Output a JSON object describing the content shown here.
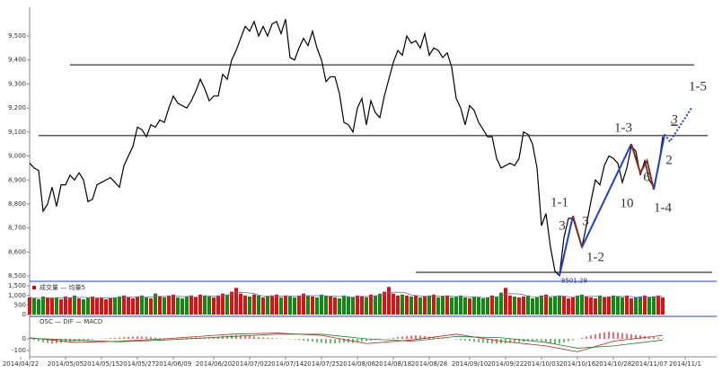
{
  "chart_data": {
    "type": "line",
    "color": "#000000",
    "xlim": [
      -2,
      152
    ],
    "ylim": [
      8489,
      9605
    ],
    "yticks": [
      {
        "value": 8500,
        "label": "8,500"
      },
      {
        "value": 8600,
        "label": "8,600"
      },
      {
        "value": 8700,
        "label": "8,700"
      },
      {
        "value": 8800,
        "label": "8,800"
      },
      {
        "value": 8900,
        "label": "8,900"
      },
      {
        "value": 9000,
        "label": "9,000"
      },
      {
        "value": 9100,
        "label": "9,100"
      },
      {
        "value": 9200,
        "label": "9,200"
      },
      {
        "value": 9300,
        "label": "9,300"
      },
      {
        "value": 9400,
        "label": "9,400"
      },
      {
        "value": 9500,
        "label": "9,500"
      }
    ],
    "xticks": [
      {
        "value": -2,
        "label": "2014/04/22"
      },
      {
        "value": 8,
        "label": "2014/05/05"
      },
      {
        "value": 16,
        "label": "2014/05/15"
      },
      {
        "value": 24,
        "label": "2014/05/27"
      },
      {
        "value": 32,
        "label": "2014/06/09"
      },
      {
        "value": 41,
        "label": "2014/06/20"
      },
      {
        "value": 49,
        "label": "2014/07/02"
      },
      {
        "value": 57,
        "label": "2014/07/14"
      },
      {
        "value": 65,
        "label": "2014/07/25"
      },
      {
        "value": 73,
        "label": "2014/08/06"
      },
      {
        "value": 81,
        "label": "2014/08/18"
      },
      {
        "value": 89,
        "label": "2014/08/28"
      },
      {
        "value": 98,
        "label": "2014/09/10"
      },
      {
        "value": 106,
        "label": "2014/09/22"
      },
      {
        "value": 114,
        "label": "2014/10/03"
      },
      {
        "value": 122,
        "label": "2014/10/16"
      },
      {
        "value": 130,
        "label": "2014/10/28"
      },
      {
        "value": 138,
        "label": "2014/11/07"
      },
      {
        "value": 146,
        "label": "2014/11/1"
      }
    ],
    "values": [
      8970,
      8950,
      8940,
      8770,
      8800,
      8870,
      8790,
      8880,
      8880,
      8920,
      8900,
      8930,
      8900,
      8810,
      8820,
      8880,
      8890,
      8900,
      8910,
      8890,
      8870,
      8960,
      9000,
      9040,
      9120,
      9110,
      9080,
      9130,
      9120,
      9150,
      9140,
      9200,
      9250,
      9220,
      9210,
      9200,
      9230,
      9270,
      9320,
      9280,
      9230,
      9250,
      9250,
      9340,
      9320,
      9400,
      9440,
      9490,
      9540,
      9520,
      9560,
      9500,
      9540,
      9500,
      9550,
      9560,
      9510,
      9570,
      9410,
      9400,
      9450,
      9490,
      9460,
      9520,
      9450,
      9400,
      9310,
      9330,
      9330,
      9260,
      9140,
      9130,
      9100,
      9200,
      9240,
      9130,
      9230,
      9180,
      9160,
      9250,
      9320,
      9390,
      9440,
      9420,
      9500,
      9470,
      9480,
      9450,
      9510,
      9420,
      9450,
      9440,
      9410,
      9430,
      9370,
      9240,
      9200,
      9130,
      9210,
      9190,
      9140,
      9110,
      9080,
      9080,
      8990,
      8950,
      8960,
      8970,
      8960,
      8990,
      9100,
      9090,
      9050,
      8950,
      8710,
      8760,
      8620,
      8520,
      8501.29,
      8660,
      8740,
      8740,
      8680,
      8620,
      8710,
      8810,
      8900,
      8880,
      8960,
      9000,
      8990,
      8970,
      8890,
      8950,
      9040,
      9020,
      8920,
      8980,
      8900,
      8870,
      8950,
      9080
    ],
    "low_label": "8501.29",
    "levels": [
      {
        "value": 9380,
        "from": 9,
        "to": 148
      },
      {
        "value": 9085,
        "from": 2,
        "to": 151
      },
      {
        "value": 8515,
        "from": 86,
        "to": 152
      }
    ],
    "waves": [
      {
        "color": "#1f3fd0",
        "x": [
          118,
          121
        ],
        "values": [
          8501.29,
          8750
        ]
      },
      {
        "color": "#8b2a1a",
        "x": [
          121,
          123
        ],
        "values": [
          8750,
          8620
        ]
      },
      {
        "color": "#1f3fd0",
        "x": [
          123,
          134
        ],
        "values": [
          8620,
          9050
        ]
      },
      {
        "color": "#8b2a1a",
        "x": [
          134,
          136,
          137.5,
          139
        ],
        "values": [
          9050,
          8930,
          8980,
          8860
        ]
      },
      {
        "color": "#1f3fd0",
        "x": [
          139,
          141.4
        ],
        "values": [
          8860,
          9090
        ]
      },
      {
        "color": "#1f3fd0",
        "dashed": true,
        "x": [
          141.4,
          142.6,
          147.4
        ],
        "values": [
          9090,
          9060,
          9200
        ]
      }
    ],
    "annotations": [
      {
        "text": "1-1",
        "color": "#000000"
      },
      {
        "text": "1-2",
        "color": "#000000"
      },
      {
        "text": "1-3",
        "color": "#000000"
      },
      {
        "text": "1-4",
        "color": "#000000"
      },
      {
        "text": "1-5",
        "color": "#000000"
      },
      {
        "text": "3",
        "color": "#1f3fd0"
      },
      {
        "text": "3",
        "color": "#8b4a1a"
      },
      {
        "text": "10",
        "color": "#1f3fd0"
      },
      {
        "text": "6",
        "color": "#8b4a1a"
      },
      {
        "text": "2",
        "color": "#1f3fd0"
      },
      {
        "text": "3",
        "color": "#1f3fd0"
      }
    ],
    "volume": {
      "legend": "成交量 — 均量5",
      "ylim": [
        0,
        1650
      ],
      "yticks": [
        0,
        500,
        {
          "value": 1000,
          "label": "1,000"
        },
        {
          "value": 1500,
          "label": "1,500"
        }
      ],
      "values": [
        900,
        850,
        800,
        950,
        900,
        850,
        900,
        800,
        950,
        900,
        1000,
        850,
        800,
        900,
        950,
        850,
        900,
        800,
        850,
        900,
        950,
        1000,
        900,
        850,
        950,
        1000,
        900,
        850,
        1100,
        950,
        900,
        1000,
        1050,
        900,
        850,
        950,
        1000,
        900,
        1050,
        1000,
        950,
        900,
        1000,
        1100,
        1050,
        1200,
        1400,
        1100,
        1000,
        950,
        1050,
        1000,
        900,
        950,
        1000,
        1050,
        900,
        1000,
        950,
        900,
        1000,
        1100,
        1000,
        950,
        900,
        1050,
        1000,
        950,
        900,
        850,
        1000,
        950,
        900,
        1000,
        950,
        900,
        1050,
        1000,
        1100,
        1200,
        1450,
        1100,
        1000,
        1050,
        1000,
        950,
        1000,
        900,
        950,
        1000,
        1050,
        900,
        950,
        1000,
        900,
        950,
        1000,
        900,
        850,
        950,
        900,
        850,
        900,
        1000,
        950,
        1150,
        1400,
        1000,
        950,
        900,
        950,
        1000,
        850,
        900,
        1000,
        1050,
        900,
        950,
        1000,
        950,
        850,
        900,
        1000,
        1050,
        950,
        900,
        850,
        1000,
        900,
        950,
        1000,
        950,
        900,
        1000,
        850,
        900,
        950,
        1000,
        900,
        950,
        1000,
        900
      ],
      "average_color": "#6a6aa8"
    },
    "macd": {
      "legend": "OSC — DIF — MACD",
      "ylim": [
        -138,
        169
      ],
      "yticks": [
        -100,
        0
      ],
      "osc": [
        0,
        -10,
        -20,
        -30,
        -35,
        -40,
        -38,
        -35,
        -30,
        -25,
        -22,
        -20,
        -15,
        -10,
        -5,
        0,
        3,
        5,
        8,
        10,
        12,
        15,
        18,
        20,
        22,
        20,
        18,
        15,
        10,
        8,
        5,
        3,
        0,
        2,
        5,
        8,
        10,
        12,
        10,
        8,
        10,
        15,
        20,
        25,
        28,
        30,
        32,
        30,
        28,
        25,
        20,
        15,
        12,
        10,
        8,
        5,
        3,
        0,
        -3,
        -5,
        -10,
        -15,
        -20,
        -25,
        -30,
        -35,
        -38,
        -40,
        -38,
        -35,
        -30,
        -32,
        -35,
        -30,
        -25,
        -20,
        -15,
        -10,
        -5,
        0,
        5,
        10,
        15,
        20,
        25,
        28,
        30,
        28,
        25,
        20,
        15,
        10,
        8,
        5,
        0,
        -5,
        -10,
        -15,
        -20,
        -25,
        -30,
        -35,
        -38,
        -40,
        -42,
        -40,
        -38,
        -35,
        -30,
        -28,
        -25,
        -20,
        -18,
        -15,
        -20,
        -30,
        -40,
        -45,
        -40,
        -30,
        -20,
        -10,
        0,
        10,
        20,
        30,
        40,
        50,
        55,
        60,
        58,
        55,
        50,
        45,
        40,
        35,
        30,
        25,
        20,
        15,
        10,
        5,
        0
      ],
      "dif": {
        "color": "#c02020",
        "x": [
          0,
          10,
          20,
          30,
          45,
          55,
          65,
          75,
          85,
          95,
          105,
          115,
          122,
          130,
          141
        ],
        "values": [
          10,
          -30,
          -20,
          0,
          40,
          50,
          30,
          -40,
          -10,
          40,
          -20,
          -60,
          -110,
          -20,
          30
        ]
      },
      "signal": {
        "color": "#208020",
        "x": [
          0,
          10,
          20,
          30,
          45,
          55,
          65,
          75,
          85,
          95,
          105,
          115,
          122,
          130,
          141
        ],
        "values": [
          5,
          -10,
          -25,
          -10,
          20,
          40,
          40,
          0,
          -20,
          20,
          10,
          -30,
          -80,
          -60,
          -10
        ]
      }
    }
  }
}
